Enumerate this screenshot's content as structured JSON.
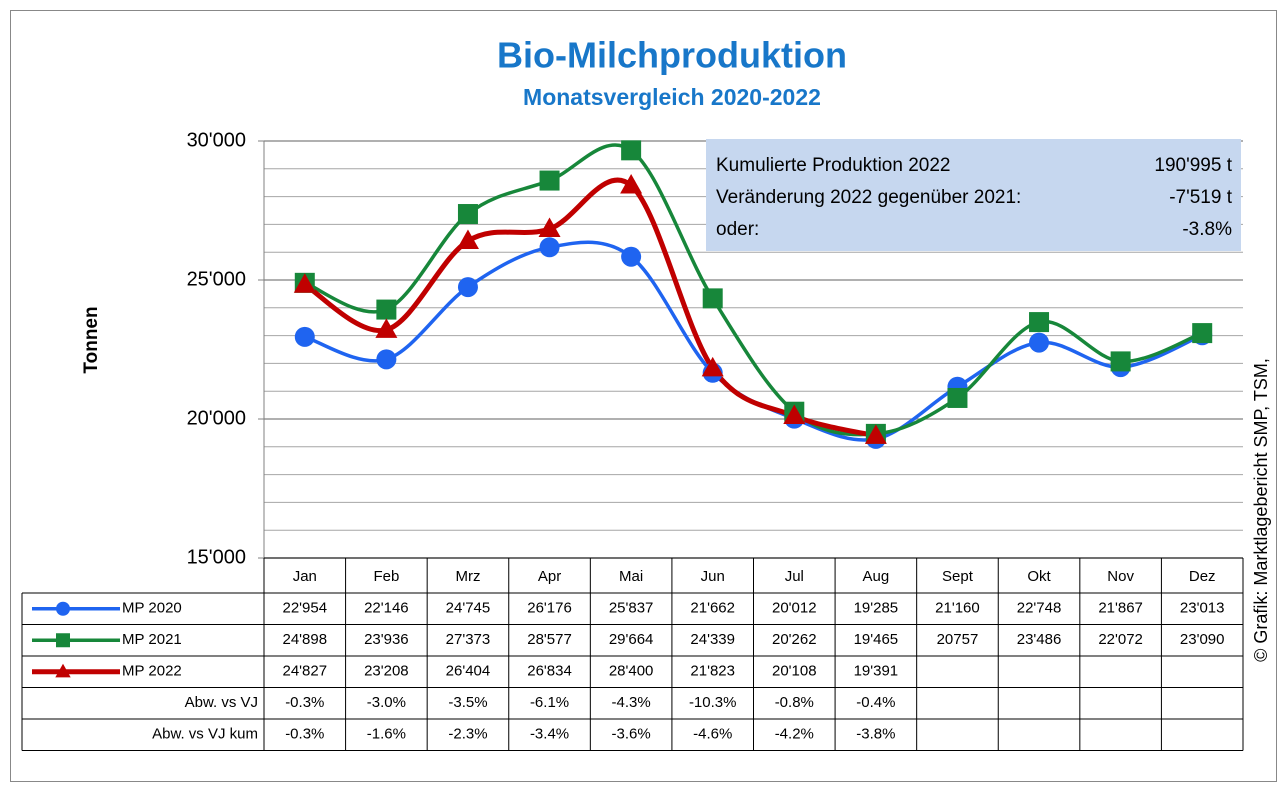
{
  "chart_data": {
    "type": "line",
    "title": "Bio-Milchproduktion",
    "subtitle": "Monatsvergleich 2020-2022",
    "y_label": "Tonnen",
    "source": "© Grafik: Marktlagebericht SMP, TSM,",
    "categories": [
      "Jan",
      "Feb",
      "Mrz",
      "Apr",
      "Mai",
      "Jun",
      "Jul",
      "Aug",
      "Sept",
      "Okt",
      "Nov",
      "Dez"
    ],
    "ylim": [
      15000,
      30000
    ],
    "yticks": [
      {
        "value": 15000,
        "label": "15'000"
      },
      {
        "value": 20000,
        "label": "20'000"
      },
      {
        "value": 25000,
        "label": "25'000"
      },
      {
        "value": 30000,
        "label": "30'000"
      }
    ],
    "minor_yticks": [
      16000,
      17000,
      18000,
      19000,
      21000,
      22000,
      23000,
      24000,
      26000,
      27000,
      28000,
      29000
    ],
    "grid": true,
    "series": [
      {
        "name": "MP 2020",
        "color": "#1f64f0",
        "marker": "circle",
        "values": [
          22954,
          22146,
          24745,
          26176,
          25837,
          21662,
          20012,
          19285,
          21160,
          22748,
          21867,
          23013
        ],
        "value_labels": [
          "22'954",
          "22'146",
          "24'745",
          "26'176",
          "25'837",
          "21'662",
          "20'012",
          "19'285",
          "21'160",
          "22'748",
          "21'867",
          "23'013"
        ]
      },
      {
        "name": "MP 2021",
        "color": "#17873a",
        "marker": "square",
        "values": [
          24898,
          23936,
          27373,
          28577,
          29664,
          24339,
          20262,
          19465,
          20757,
          23486,
          22072,
          23090
        ],
        "value_labels": [
          "24'898",
          "23'936",
          "27'373",
          "28'577",
          "29'664",
          "24'339",
          "20'262",
          "19'465",
          "20757",
          "23'486",
          "22'072",
          "23'090"
        ]
      },
      {
        "name": "MP 2022",
        "color": "#c00000",
        "marker": "triangle",
        "values": [
          24827,
          23208,
          26404,
          26834,
          28400,
          21823,
          20108,
          19391,
          null,
          null,
          null,
          null
        ],
        "value_labels": [
          "24'827",
          "23'208",
          "26'404",
          "26'834",
          "28'400",
          "21'823",
          "20'108",
          "19'391",
          null,
          null,
          null,
          null
        ]
      }
    ],
    "table_rows": [
      {
        "name": "Abw. vs VJ",
        "values": [
          -0.3,
          -3.0,
          -3.5,
          -6.1,
          -4.3,
          -10.3,
          -0.8,
          -0.4,
          null,
          null,
          null,
          null
        ],
        "value_labels": [
          "-0.3%",
          "-3.0%",
          "-3.5%",
          "-6.1%",
          "-4.3%",
          "-10.3%",
          "-0.8%",
          "-0.4%",
          null,
          null,
          null,
          null
        ]
      },
      {
        "name": "Abw. vs VJ kum",
        "values": [
          -0.3,
          -1.6,
          -2.3,
          -3.4,
          -3.6,
          -4.6,
          -4.2,
          -3.8,
          null,
          null,
          null,
          null
        ],
        "value_labels": [
          "-0.3%",
          "-1.6%",
          "-2.3%",
          "-3.4%",
          "-3.6%",
          "-4.6%",
          "-4.2%",
          "-3.8%",
          null,
          null,
          null,
          null
        ]
      }
    ],
    "info_box": {
      "color": "#c6d7ef",
      "lines": [
        {
          "label": "Kumulierte Produktion 2022",
          "value": "190'995 t"
        },
        {
          "label": "Veränderung 2022 gegenüber 2021:",
          "value": "-7'519 t"
        },
        {
          "label": "oder:",
          "value": "-3.8%"
        }
      ]
    }
  }
}
